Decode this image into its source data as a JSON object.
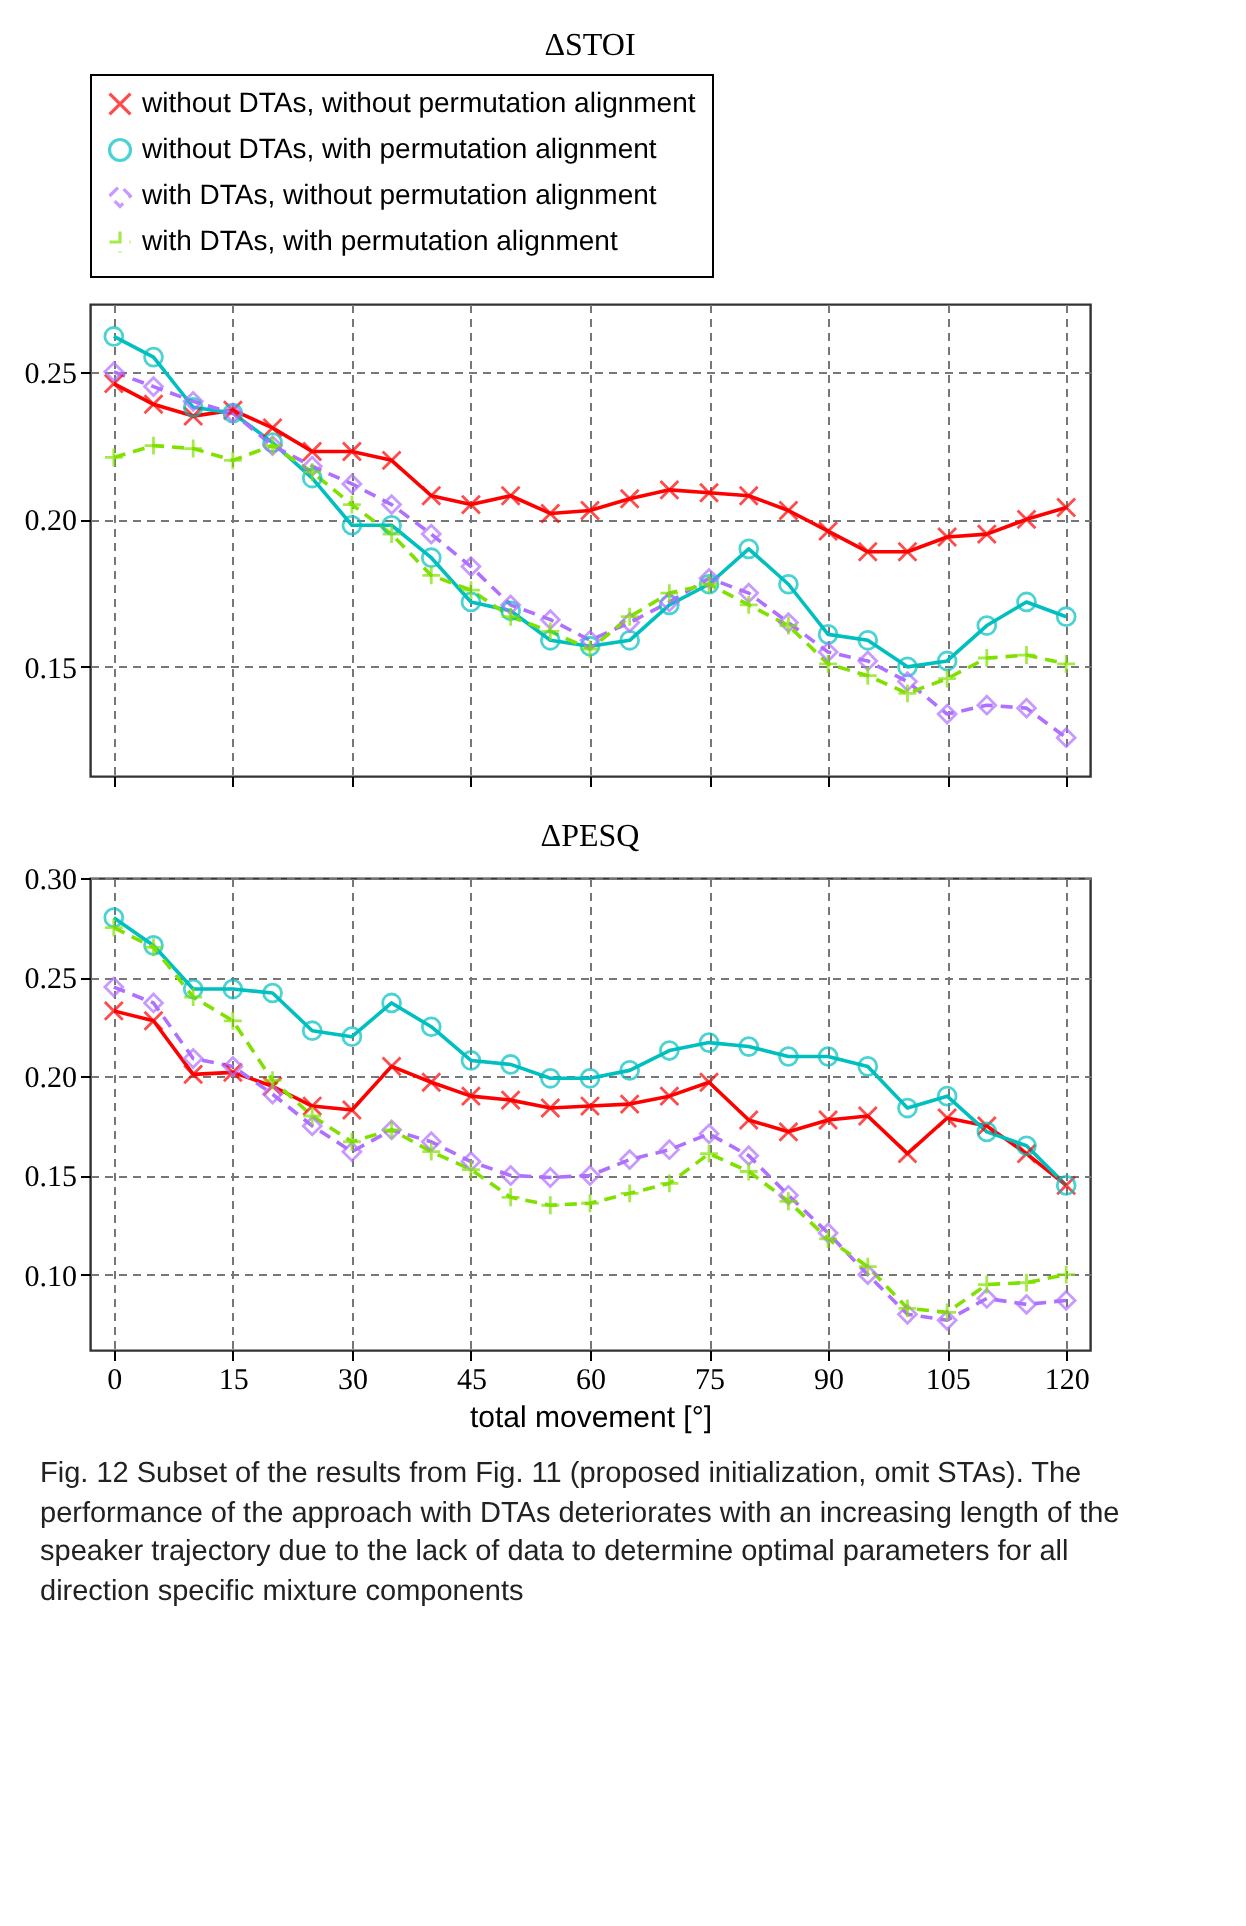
{
  "chart_data": [
    {
      "type": "line",
      "title": "ΔSTOI",
      "x": [
        0,
        5,
        10,
        15,
        20,
        25,
        30,
        35,
        40,
        45,
        50,
        55,
        60,
        65,
        70,
        75,
        80,
        85,
        90,
        95,
        100,
        105,
        110,
        115,
        120
      ],
      "xlim": [
        -3,
        123
      ],
      "xticks": [
        0,
        15,
        30,
        45,
        60,
        75,
        90,
        105,
        120
      ],
      "ylim": [
        0.113,
        0.273
      ],
      "yticks": [
        {
          "value": 0.15,
          "label": "0.15"
        },
        {
          "value": 0.2,
          "label": "0.20"
        },
        {
          "value": 0.25,
          "label": "0.25"
        }
      ],
      "grid": true,
      "legend": "top",
      "tick_labels": "y",
      "series": [
        {
          "name": "without DTAs, without permutation alignment",
          "color": "#ff0000",
          "marker": "cross",
          "line_style": "solid",
          "values": [
            0.246,
            0.239,
            0.235,
            0.237,
            0.231,
            0.223,
            0.223,
            0.22,
            0.208,
            0.205,
            0.208,
            0.202,
            0.203,
            0.207,
            0.21,
            0.209,
            0.208,
            0.203,
            0.196,
            0.189,
            0.189,
            0.194,
            0.195,
            0.2,
            0.204
          ]
        },
        {
          "name": "without DTAs, with permutation alignment",
          "color": "#00bfbf",
          "marker": "circle",
          "line_style": "solid",
          "values": [
            0.262,
            0.255,
            0.238,
            0.236,
            0.226,
            0.214,
            0.198,
            0.198,
            0.187,
            0.172,
            0.169,
            0.159,
            0.157,
            0.159,
            0.171,
            0.178,
            0.19,
            0.178,
            0.161,
            0.159,
            0.15,
            0.152,
            0.164,
            0.172,
            0.167
          ]
        },
        {
          "name": "with DTAs, without permutation alignment",
          "color": "#b070ff",
          "marker": "diamond",
          "line_style": "dashed",
          "values": [
            0.25,
            0.245,
            0.24,
            0.236,
            0.225,
            0.218,
            0.212,
            0.205,
            0.195,
            0.184,
            0.171,
            0.166,
            0.159,
            0.165,
            0.172,
            0.18,
            0.175,
            0.165,
            0.155,
            0.152,
            0.145,
            0.134,
            0.137,
            0.136,
            0.126
          ]
        },
        {
          "name": "with DTAs, with permutation alignment",
          "color": "#80e000",
          "marker": "plus",
          "line_style": "dashed",
          "values": [
            0.221,
            0.225,
            0.224,
            0.22,
            0.225,
            0.216,
            0.205,
            0.195,
            0.181,
            0.176,
            0.167,
            0.162,
            0.156,
            0.167,
            0.175,
            0.178,
            0.171,
            0.164,
            0.151,
            0.147,
            0.141,
            0.146,
            0.153,
            0.154,
            0.151
          ]
        }
      ]
    },
    {
      "type": "line",
      "title": "ΔPESQ",
      "xlabel": "total movement [°]",
      "x": [
        0,
        5,
        10,
        15,
        20,
        25,
        30,
        35,
        40,
        45,
        50,
        55,
        60,
        65,
        70,
        75,
        80,
        85,
        90,
        95,
        100,
        105,
        110,
        115,
        120
      ],
      "xlim": [
        -3,
        123
      ],
      "xticks": [
        0,
        15,
        30,
        45,
        60,
        75,
        90,
        105,
        120
      ],
      "ylim": [
        0.062,
        0.3
      ],
      "yticks": [
        {
          "value": 0.1,
          "label": "0.10"
        },
        {
          "value": 0.15,
          "label": "0.15"
        },
        {
          "value": 0.2,
          "label": "0.20"
        },
        {
          "value": 0.25,
          "label": "0.25"
        },
        {
          "value": 0.3,
          "label": "0.30"
        }
      ],
      "grid": true,
      "annotations": [
        "Fig. 12 Subset of the results from Fig. 11 (proposed initialization, omit STAs). The performance of the approach with DTAs deteriorates with an increasing length of the speaker trajectory due to the lack of data to determine optimal parameters for all direction specific mixture components"
      ],
      "series": [
        {
          "color": "#ff0000",
          "marker": "cross",
          "line_style": "solid",
          "values": [
            0.233,
            0.228,
            0.201,
            0.202,
            0.195,
            0.185,
            0.183,
            0.205,
            0.197,
            0.19,
            0.188,
            0.184,
            0.185,
            0.186,
            0.19,
            0.197,
            0.178,
            0.172,
            0.178,
            0.18,
            0.161,
            0.179,
            0.175,
            0.161,
            0.145
          ]
        },
        {
          "color": "#00bfbf",
          "marker": "circle",
          "line_style": "solid",
          "values": [
            0.28,
            0.266,
            0.244,
            0.244,
            0.242,
            0.223,
            0.22,
            0.237,
            0.225,
            0.208,
            0.206,
            0.199,
            0.199,
            0.203,
            0.213,
            0.217,
            0.215,
            0.21,
            0.21,
            0.205,
            0.184,
            0.19,
            0.172,
            0.165,
            0.145
          ]
        },
        {
          "color": "#b070ff",
          "marker": "diamond",
          "line_style": "dashed",
          "values": [
            0.245,
            0.237,
            0.209,
            0.205,
            0.191,
            0.175,
            0.162,
            0.173,
            0.167,
            0.157,
            0.15,
            0.149,
            0.15,
            0.158,
            0.163,
            0.171,
            0.16,
            0.14,
            0.121,
            0.1,
            0.08,
            0.077,
            0.088,
            0.085,
            0.087
          ]
        },
        {
          "color": "#80e000",
          "marker": "plus",
          "line_style": "dashed",
          "values": [
            0.275,
            0.265,
            0.24,
            0.228,
            0.198,
            0.18,
            0.167,
            0.173,
            0.162,
            0.153,
            0.139,
            0.135,
            0.136,
            0.141,
            0.146,
            0.161,
            0.152,
            0.137,
            0.118,
            0.104,
            0.083,
            0.081,
            0.095,
            0.096,
            0.1
          ]
        }
      ]
    }
  ]
}
